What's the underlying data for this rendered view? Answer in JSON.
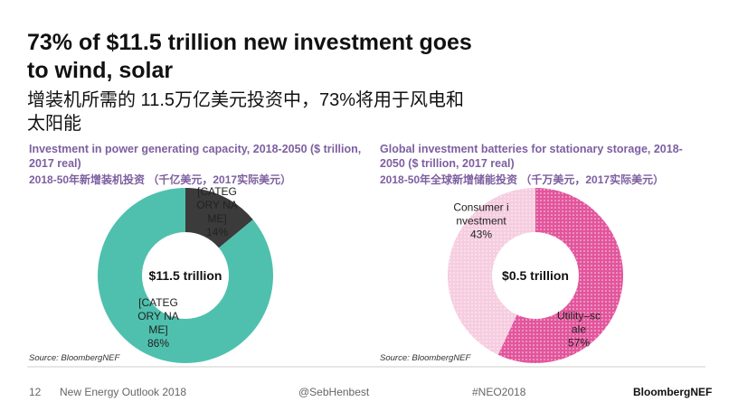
{
  "title": "73% of $11.5 trillion new investment goes to wind, solar",
  "subtitle": "增装机所需的 11.5万亿美元投资中，73%将用于风电和太阳能",
  "chart_data": [
    {
      "type": "donut",
      "title": "Investment in power generating capacity, 2018-2050 ($ trillion, 2017 real)",
      "subtitle": "2018-50年新增装机投资 （千亿美元，2017实际美元）",
      "center_label": "$11.5 trillion",
      "categories": [
        "[CATEGORY NAME]",
        "[CATEGORY NAME]"
      ],
      "values": [
        14,
        86
      ],
      "value_labels": [
        "14%",
        "86%"
      ],
      "colors": [
        "#3b3b3b",
        "#4fc0ae"
      ],
      "source": "Source: BloombergNEF"
    },
    {
      "type": "donut",
      "title": "Global investment batteries for stationary storage, 2018-2050 ($ trillion, 2017 real)",
      "subtitle": "2018-50年全球新增储能投资 （千万美元，2017实际美元）",
      "center_label": "$0.5 trillion",
      "categories": [
        "Utility–scale",
        "Consumer investment"
      ],
      "values": [
        57,
        43
      ],
      "value_labels": [
        "57%",
        "43%"
      ],
      "colors": [
        "#e2559c",
        "#f6cde0"
      ],
      "pattern": "dotted",
      "source": "Source: BloombergNEF"
    }
  ],
  "footer": {
    "page": "12",
    "report": "New Energy Outlook 2018",
    "handle": "@SebHenbest",
    "hashtag": "#NEO2018",
    "brand": "BloombergNEF"
  }
}
